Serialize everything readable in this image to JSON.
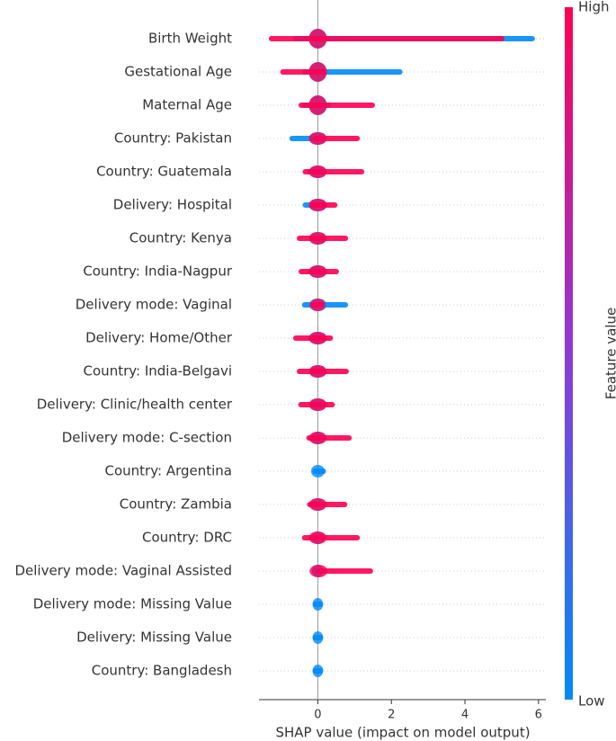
{
  "chart_data": {
    "type": "beeswarm",
    "x_label": "SHAP value (impact on model output)",
    "colorbar_label": "Feature value",
    "categories": [
      "Birth Weight",
      "Gestational Age",
      "Maternal Age",
      "Country: Pakistan",
      "Country: Guatemala",
      "Delivery: Hospital",
      "Country: Kenya",
      "Country: India-Nagpur",
      "Delivery mode: Vaginal",
      "Delivery: Home/Other",
      "Country: India-Belgavi",
      "Delivery: Clinic/health center",
      "Delivery mode: C-section",
      "Country: Argentina",
      "Country: Zambia",
      "Country: DRC",
      "Delivery mode: Vaginal Assisted",
      "Delivery mode: Missing Value",
      "Delivery: Missing Value",
      "Country: Bangladesh"
    ],
    "series": [
      {
        "name": "Low",
        "color": "#008bfb",
        "min": [
          -0.6,
          -0.35,
          -0.35,
          -0.7,
          -0.22,
          -0.34,
          -0.15,
          -0.2,
          -0.36,
          -0.2,
          -0.15,
          -0.15,
          -0.15,
          -0.07,
          -0.15,
          -0.12,
          -0.1,
          -0.07,
          -0.07,
          -0.07
        ],
        "max": [
          5.83,
          2.23,
          0.27,
          0.1,
          0.1,
          0.15,
          0.15,
          0.15,
          0.75,
          0.15,
          0.15,
          0.15,
          0.1,
          0.15,
          0.1,
          0.1,
          0.07,
          0.07,
          0.07,
          0.07
        ]
      },
      {
        "name": "High",
        "color": "#ff0052",
        "min": [
          -1.26,
          -0.95,
          -0.45,
          -0.05,
          -0.34,
          -0.15,
          -0.5,
          -0.45,
          -0.15,
          -0.6,
          -0.5,
          -0.46,
          -0.24,
          null,
          -0.22,
          -0.36,
          0.02,
          null,
          null,
          null
        ],
        "max": [
          5.0,
          0.15,
          1.48,
          1.07,
          1.19,
          0.46,
          0.75,
          0.5,
          0.1,
          0.34,
          0.77,
          0.39,
          0.85,
          null,
          0.73,
          1.07,
          1.43,
          null,
          null,
          null
        ]
      }
    ],
    "xlim": [
      -1.6,
      6.2
    ],
    "xticks": [
      0,
      2,
      4,
      6
    ]
  }
}
